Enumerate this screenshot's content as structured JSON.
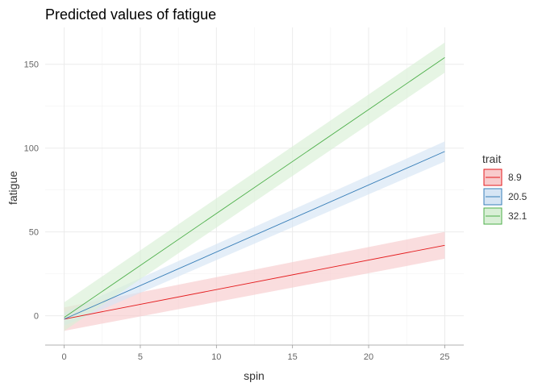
{
  "chart_data": {
    "type": "line",
    "title": "Predicted values of fatigue",
    "xlabel": "spin",
    "ylabel": "fatigue",
    "xlim": [
      -1.25,
      26.25
    ],
    "ylim": [
      -17.5,
      172
    ],
    "xticks": [
      0,
      5,
      10,
      15,
      20,
      25
    ],
    "yticks": [
      0,
      50,
      100,
      150
    ],
    "grid": true,
    "legend": {
      "title": "trait",
      "position": "right"
    },
    "series": [
      {
        "name": "8.9",
        "color": "#E41A1C",
        "fill": "#F8CBCC",
        "x": [
          0,
          25
        ],
        "y": [
          -2,
          42
        ],
        "lower": [
          -9,
          34
        ],
        "upper": [
          5,
          50
        ]
      },
      {
        "name": "20.5",
        "color": "#377EB8",
        "fill": "#D6E5F4",
        "x": [
          0,
          25
        ],
        "y": [
          -2,
          98
        ],
        "lower": [
          -6,
          92
        ],
        "upper": [
          2,
          104
        ]
      },
      {
        "name": "32.1",
        "color": "#4DAF4A",
        "fill": "#D9EFD6",
        "x": [
          0,
          25
        ],
        "y": [
          -1,
          154
        ],
        "lower": [
          -9,
          145
        ],
        "upper": [
          8,
          163
        ]
      }
    ]
  }
}
